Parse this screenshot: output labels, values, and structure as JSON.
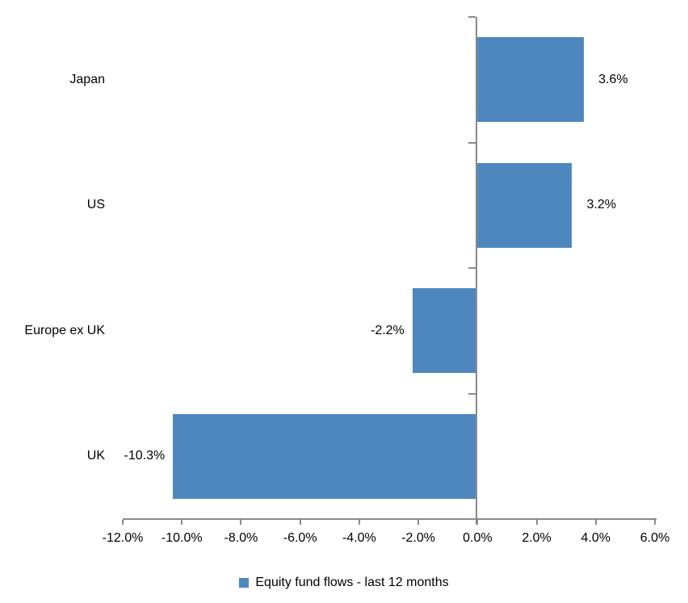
{
  "chart_data": {
    "type": "bar",
    "orientation": "horizontal",
    "title": "",
    "xlabel": "",
    "ylabel": "",
    "grid": false,
    "categories": [
      "Japan",
      "US",
      "Europe ex UK",
      "UK"
    ],
    "series": [
      {
        "name": "Equity fund flows - last 12 months",
        "values": [
          3.6,
          3.2,
          -2.2,
          -10.3
        ],
        "data_labels": [
          "3.6%",
          "3.2%",
          "-2.2%",
          "-10.3%"
        ]
      }
    ],
    "xlim": [
      -12,
      6
    ],
    "x_tick_step": 2,
    "x_tick_labels": [
      "-12.0%",
      "-10.0%",
      "-8.0%",
      "-6.0%",
      "-4.0%",
      "-2.0%",
      "0.0%",
      "2.0%",
      "4.0%",
      "6.0%"
    ],
    "legend_position": "bottom",
    "legend": [
      "Equity fund flows - last 12 months"
    ],
    "colors": {
      "bar": "#4E87BE",
      "axis": "#8A8A8A",
      "text": "#000000",
      "background": "#FFFFFF"
    }
  }
}
